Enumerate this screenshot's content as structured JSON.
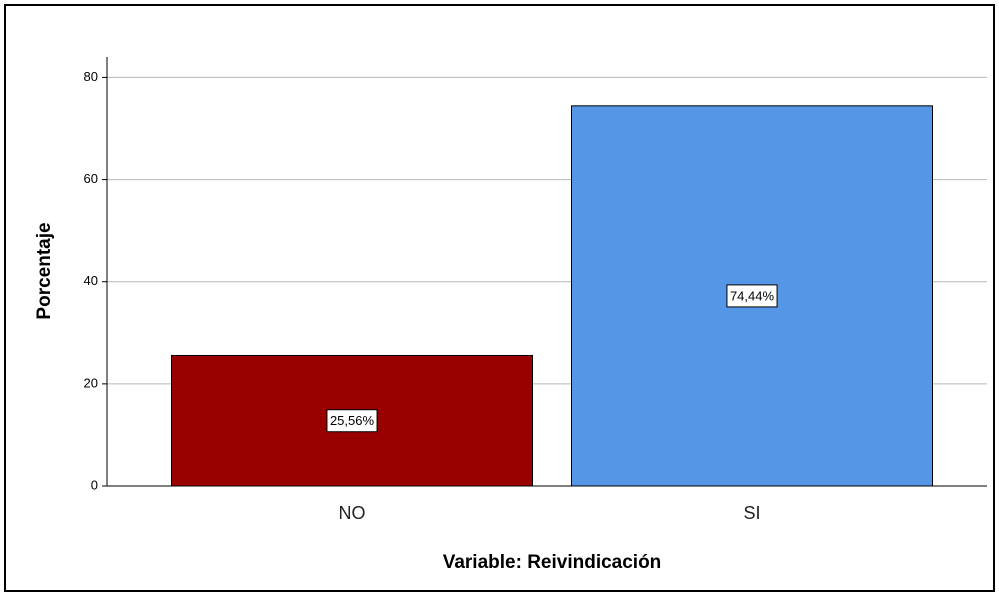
{
  "chart_data": {
    "type": "bar",
    "categories": [
      "NO",
      "SI"
    ],
    "values": [
      25.56,
      74.44
    ],
    "value_labels": [
      "25,56%",
      "74,44%"
    ],
    "colors": [
      "#990000",
      "#5596e6"
    ],
    "ylabel": "Porcentaje",
    "xlabel": "Variable: Reivindicación",
    "ylim": [
      0,
      84
    ],
    "yticks": [
      0,
      20,
      40,
      60,
      80
    ],
    "grid": true
  }
}
